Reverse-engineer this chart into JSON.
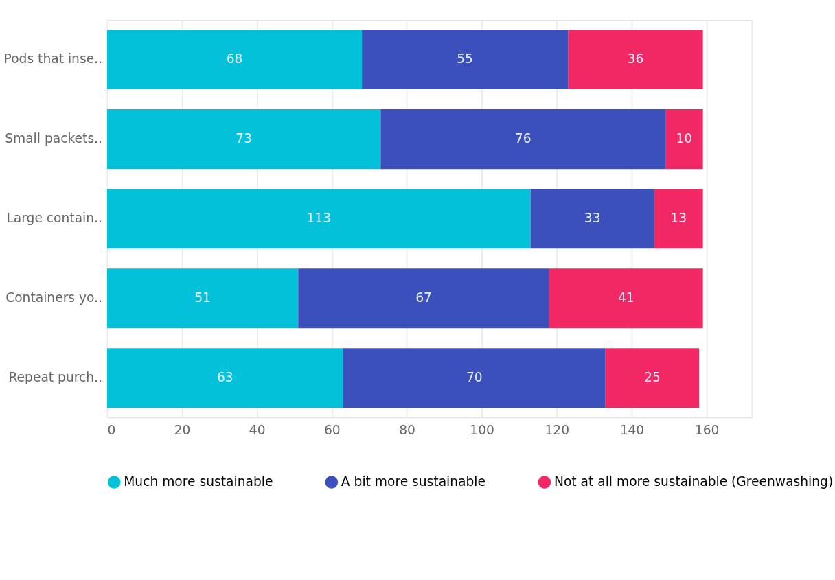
{
  "chart_data": {
    "type": "bar",
    "orientation": "horizontal",
    "stacked": true,
    "data_labels": true,
    "grid": "x",
    "legend": "bottom",
    "categories": [
      "Pods that inse..",
      "Small packets..",
      "Large contain..",
      "Containers yo..",
      "Repeat purch.."
    ],
    "series": [
      {
        "name": "Much more sustainable",
        "color": "#03c1d8",
        "values": [
          68,
          73,
          113,
          51,
          63
        ]
      },
      {
        "name": "A bit more sustainable",
        "color": "#3c50bc",
        "values": [
          55,
          76,
          33,
          67,
          70
        ]
      },
      {
        "name": "Not at all more sustainable (Greenwashing)",
        "color": "#f22865",
        "values": [
          36,
          10,
          13,
          41,
          25
        ]
      }
    ],
    "xlim": [
      0,
      172
    ],
    "xticks": [
      0,
      20,
      40,
      60,
      80,
      100,
      120,
      140,
      160
    ]
  }
}
